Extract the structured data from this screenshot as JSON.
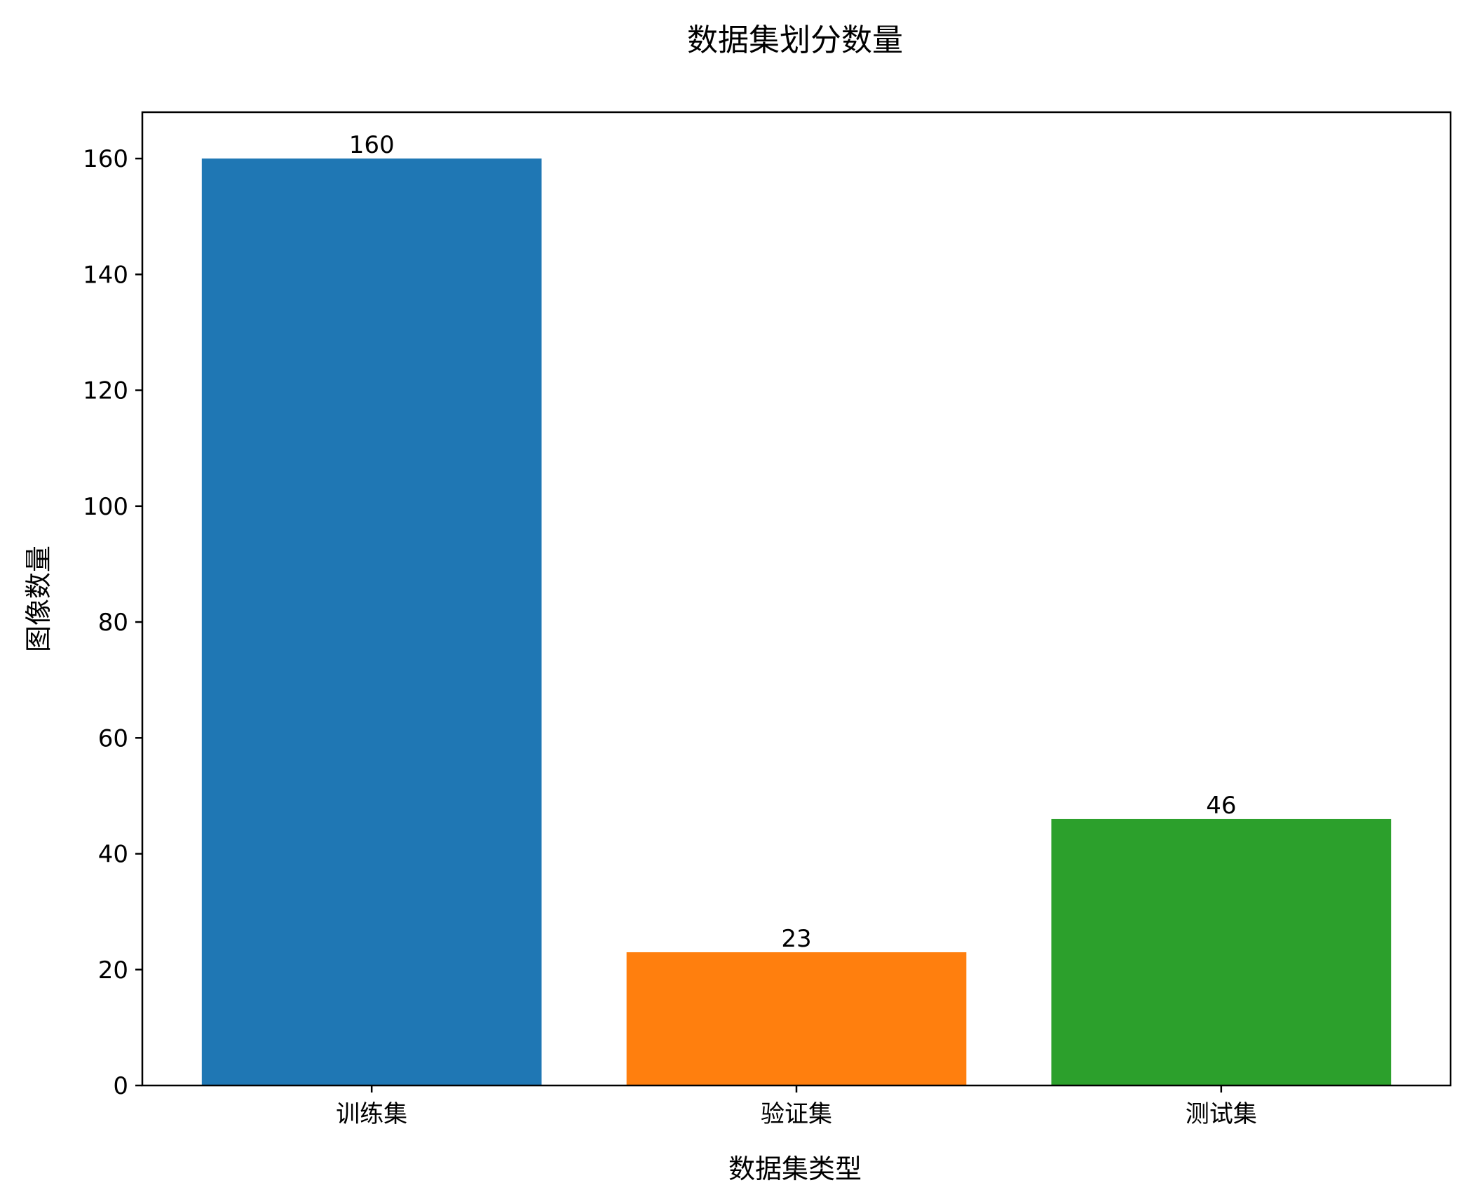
{
  "chart_data": {
    "type": "bar",
    "title": "数据集划分数量",
    "xlabel": "数据集类型",
    "ylabel": "图像数量",
    "categories": [
      "训练集",
      "验证集",
      "测试集"
    ],
    "values": [
      160,
      23,
      46
    ],
    "data_labels": [
      "160",
      "23",
      "46"
    ],
    "colors": [
      "#1f77b4",
      "#ff7f0e",
      "#2ca02c"
    ],
    "ylim": [
      0,
      168
    ],
    "yticks": [
      0,
      20,
      40,
      60,
      80,
      100,
      120,
      140,
      160
    ],
    "grid": false,
    "legend": "none"
  }
}
